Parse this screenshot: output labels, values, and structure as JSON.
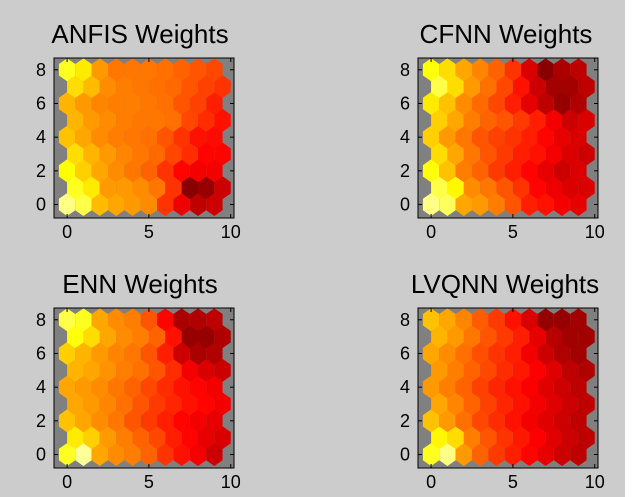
{
  "figure": {
    "background": "#cccccc",
    "axes_background": "#808080"
  },
  "chart_data": [
    {
      "type": "heatmap",
      "title": "ANFIS Weights",
      "xticks": [
        "0",
        "5",
        "10"
      ],
      "yticks": [
        "0",
        "2",
        "4",
        "6",
        "8"
      ],
      "xlim": [
        -0.8,
        10.2
      ],
      "ylim": [
        -0.8,
        8.7
      ],
      "grid": "off",
      "legend": "none",
      "cols": 10,
      "rows": 9,
      "colormap": "hot",
      "values": [
        [
          0.88,
          0.82,
          0.65,
          0.62,
          0.6,
          0.58,
          0.45,
          0.35,
          0.28,
          0.3
        ],
        [
          0.78,
          0.72,
          0.6,
          0.6,
          0.58,
          0.55,
          0.45,
          0.2,
          0.22,
          0.3
        ],
        [
          0.75,
          0.68,
          0.62,
          0.58,
          0.55,
          0.52,
          0.45,
          0.38,
          0.36,
          0.36
        ],
        [
          0.7,
          0.64,
          0.6,
          0.57,
          0.55,
          0.53,
          0.48,
          0.44,
          0.38,
          0.38
        ],
        [
          0.66,
          0.62,
          0.58,
          0.56,
          0.55,
          0.54,
          0.5,
          0.45,
          0.4,
          0.39
        ],
        [
          0.64,
          0.6,
          0.58,
          0.56,
          0.55,
          0.55,
          0.54,
          0.48,
          0.44,
          0.4
        ],
        [
          0.64,
          0.6,
          0.57,
          0.56,
          0.56,
          0.55,
          0.54,
          0.5,
          0.47,
          0.42
        ],
        [
          0.7,
          0.65,
          0.58,
          0.56,
          0.55,
          0.54,
          0.53,
          0.5,
          0.47,
          0.45
        ],
        [
          0.78,
          0.72,
          0.6,
          0.55,
          0.55,
          0.55,
          0.54,
          0.52,
          0.5,
          0.48
        ]
      ]
    },
    {
      "type": "heatmap",
      "title": "CFNN Weights",
      "xticks": [
        "0",
        "5",
        "10"
      ],
      "yticks": [
        "0",
        "2",
        "4",
        "6",
        "8"
      ],
      "xlim": [
        -0.8,
        10.2
      ],
      "ylim": [
        -0.8,
        8.7
      ],
      "grid": "off",
      "legend": "none",
      "cols": 10,
      "rows": 9,
      "colormap": "hot",
      "values": [
        [
          0.88,
          0.84,
          0.62,
          0.6,
          0.56,
          0.5,
          0.42,
          0.4,
          0.36,
          0.34
        ],
        [
          0.82,
          0.74,
          0.58,
          0.55,
          0.5,
          0.45,
          0.38,
          0.35,
          0.32,
          0.32
        ],
        [
          0.76,
          0.66,
          0.56,
          0.52,
          0.46,
          0.42,
          0.38,
          0.34,
          0.3,
          0.32
        ],
        [
          0.7,
          0.62,
          0.55,
          0.5,
          0.46,
          0.42,
          0.4,
          0.36,
          0.32,
          0.3
        ],
        [
          0.68,
          0.6,
          0.55,
          0.5,
          0.47,
          0.45,
          0.42,
          0.38,
          0.34,
          0.32
        ],
        [
          0.68,
          0.62,
          0.56,
          0.52,
          0.5,
          0.46,
          0.42,
          0.36,
          0.3,
          0.32
        ],
        [
          0.72,
          0.66,
          0.58,
          0.53,
          0.48,
          0.42,
          0.34,
          0.28,
          0.22,
          0.26
        ],
        [
          0.82,
          0.7,
          0.6,
          0.54,
          0.48,
          0.4,
          0.3,
          0.24,
          0.24,
          0.28
        ],
        [
          0.76,
          0.7,
          0.62,
          0.57,
          0.52,
          0.45,
          0.32,
          0.2,
          0.25,
          0.28
        ]
      ]
    },
    {
      "type": "heatmap",
      "title": "ENN Weights",
      "xticks": [
        "0",
        "5",
        "10"
      ],
      "yticks": [
        "0",
        "2",
        "4",
        "6",
        "8"
      ],
      "xlim": [
        -0.8,
        10.2
      ],
      "ylim": [
        -0.8,
        8.7
      ],
      "grid": "off",
      "legend": "none",
      "cols": 10,
      "rows": 9,
      "colormap": "hot",
      "values": [
        [
          0.78,
          0.9,
          0.62,
          0.58,
          0.56,
          0.52,
          0.45,
          0.4,
          0.36,
          0.3
        ],
        [
          0.72,
          0.68,
          0.6,
          0.56,
          0.52,
          0.48,
          0.42,
          0.38,
          0.34,
          0.32
        ],
        [
          0.66,
          0.62,
          0.58,
          0.55,
          0.5,
          0.46,
          0.42,
          0.38,
          0.36,
          0.34
        ],
        [
          0.62,
          0.6,
          0.57,
          0.54,
          0.5,
          0.46,
          0.43,
          0.4,
          0.38,
          0.36
        ],
        [
          0.62,
          0.6,
          0.58,
          0.55,
          0.52,
          0.48,
          0.44,
          0.4,
          0.38,
          0.36
        ],
        [
          0.64,
          0.62,
          0.59,
          0.56,
          0.54,
          0.5,
          0.44,
          0.36,
          0.32,
          0.3
        ],
        [
          0.68,
          0.64,
          0.6,
          0.57,
          0.55,
          0.5,
          0.42,
          0.3,
          0.25,
          0.26
        ],
        [
          0.76,
          0.7,
          0.62,
          0.58,
          0.56,
          0.52,
          0.4,
          0.22,
          0.22,
          0.26
        ],
        [
          0.82,
          0.78,
          0.62,
          0.58,
          0.56,
          0.5,
          0.38,
          0.25,
          0.26,
          0.28
        ]
      ]
    },
    {
      "type": "heatmap",
      "title": "LVQNN Weights",
      "xticks": [
        "0",
        "5",
        "10"
      ],
      "yticks": [
        "0",
        "2",
        "4",
        "6",
        "8"
      ],
      "xlim": [
        -0.8,
        10.2
      ],
      "ylim": [
        -0.8,
        8.7
      ],
      "grid": "off",
      "legend": "none",
      "cols": 10,
      "rows": 9,
      "colormap": "hot",
      "values": [
        [
          0.78,
          0.88,
          0.6,
          0.52,
          0.46,
          0.42,
          0.38,
          0.34,
          0.3,
          0.28
        ],
        [
          0.74,
          0.7,
          0.56,
          0.5,
          0.45,
          0.41,
          0.37,
          0.33,
          0.3,
          0.28
        ],
        [
          0.66,
          0.6,
          0.54,
          0.48,
          0.44,
          0.4,
          0.36,
          0.33,
          0.3,
          0.28
        ],
        [
          0.62,
          0.57,
          0.52,
          0.47,
          0.43,
          0.4,
          0.36,
          0.33,
          0.3,
          0.28
        ],
        [
          0.6,
          0.56,
          0.52,
          0.47,
          0.43,
          0.4,
          0.37,
          0.33,
          0.3,
          0.28
        ],
        [
          0.6,
          0.56,
          0.52,
          0.48,
          0.44,
          0.41,
          0.37,
          0.33,
          0.28,
          0.26
        ],
        [
          0.62,
          0.58,
          0.54,
          0.49,
          0.45,
          0.42,
          0.36,
          0.3,
          0.26,
          0.24
        ],
        [
          0.64,
          0.6,
          0.55,
          0.5,
          0.46,
          0.42,
          0.34,
          0.27,
          0.24,
          0.24
        ],
        [
          0.66,
          0.62,
          0.57,
          0.51,
          0.46,
          0.4,
          0.32,
          0.22,
          0.22,
          0.24
        ]
      ]
    }
  ]
}
